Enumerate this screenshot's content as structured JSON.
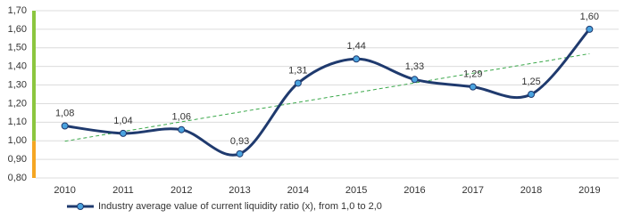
{
  "chart_data": {
    "type": "line",
    "categories": [
      "2010",
      "2011",
      "2012",
      "2013",
      "2014",
      "2015",
      "2016",
      "2017",
      "2018",
      "2019"
    ],
    "series": [
      {
        "name": "Industry average value of current liquidity ratio (x), from 1,0 to 2,0",
        "color": "#1f3a6e",
        "marker_color": "#4aa3df",
        "values": [
          1.08,
          1.04,
          1.06,
          0.93,
          1.31,
          1.44,
          1.33,
          1.29,
          1.25,
          1.6
        ],
        "value_labels": [
          "1,08",
          "1,04",
          "1,06",
          "0,93",
          "1,31",
          "1,44",
          "1,33",
          "1,29",
          "1,25",
          "1,60"
        ]
      }
    ],
    "ylim": [
      0.8,
      1.7
    ],
    "yticks": [
      {
        "value": 0.8,
        "label": "0,80"
      },
      {
        "value": 0.9,
        "label": "0,90"
      },
      {
        "value": 1.0,
        "label": "1,00"
      },
      {
        "value": 1.1,
        "label": "1,10"
      },
      {
        "value": 1.2,
        "label": "1,20"
      },
      {
        "value": 1.3,
        "label": "1,30"
      },
      {
        "value": 1.4,
        "label": "1,40"
      },
      {
        "value": 1.5,
        "label": "1,50"
      },
      {
        "value": 1.6,
        "label": "1,60"
      },
      {
        "value": 1.7,
        "label": "1,70"
      }
    ],
    "grid": true,
    "smooth": true,
    "trendline": true,
    "trendline_color": "#3aa84a",
    "axis_bands": [
      {
        "from": 0.8,
        "to": 1.0,
        "color": "#f5a623"
      },
      {
        "from": 1.0,
        "to": 1.7,
        "color": "#8cc63f"
      }
    ]
  }
}
